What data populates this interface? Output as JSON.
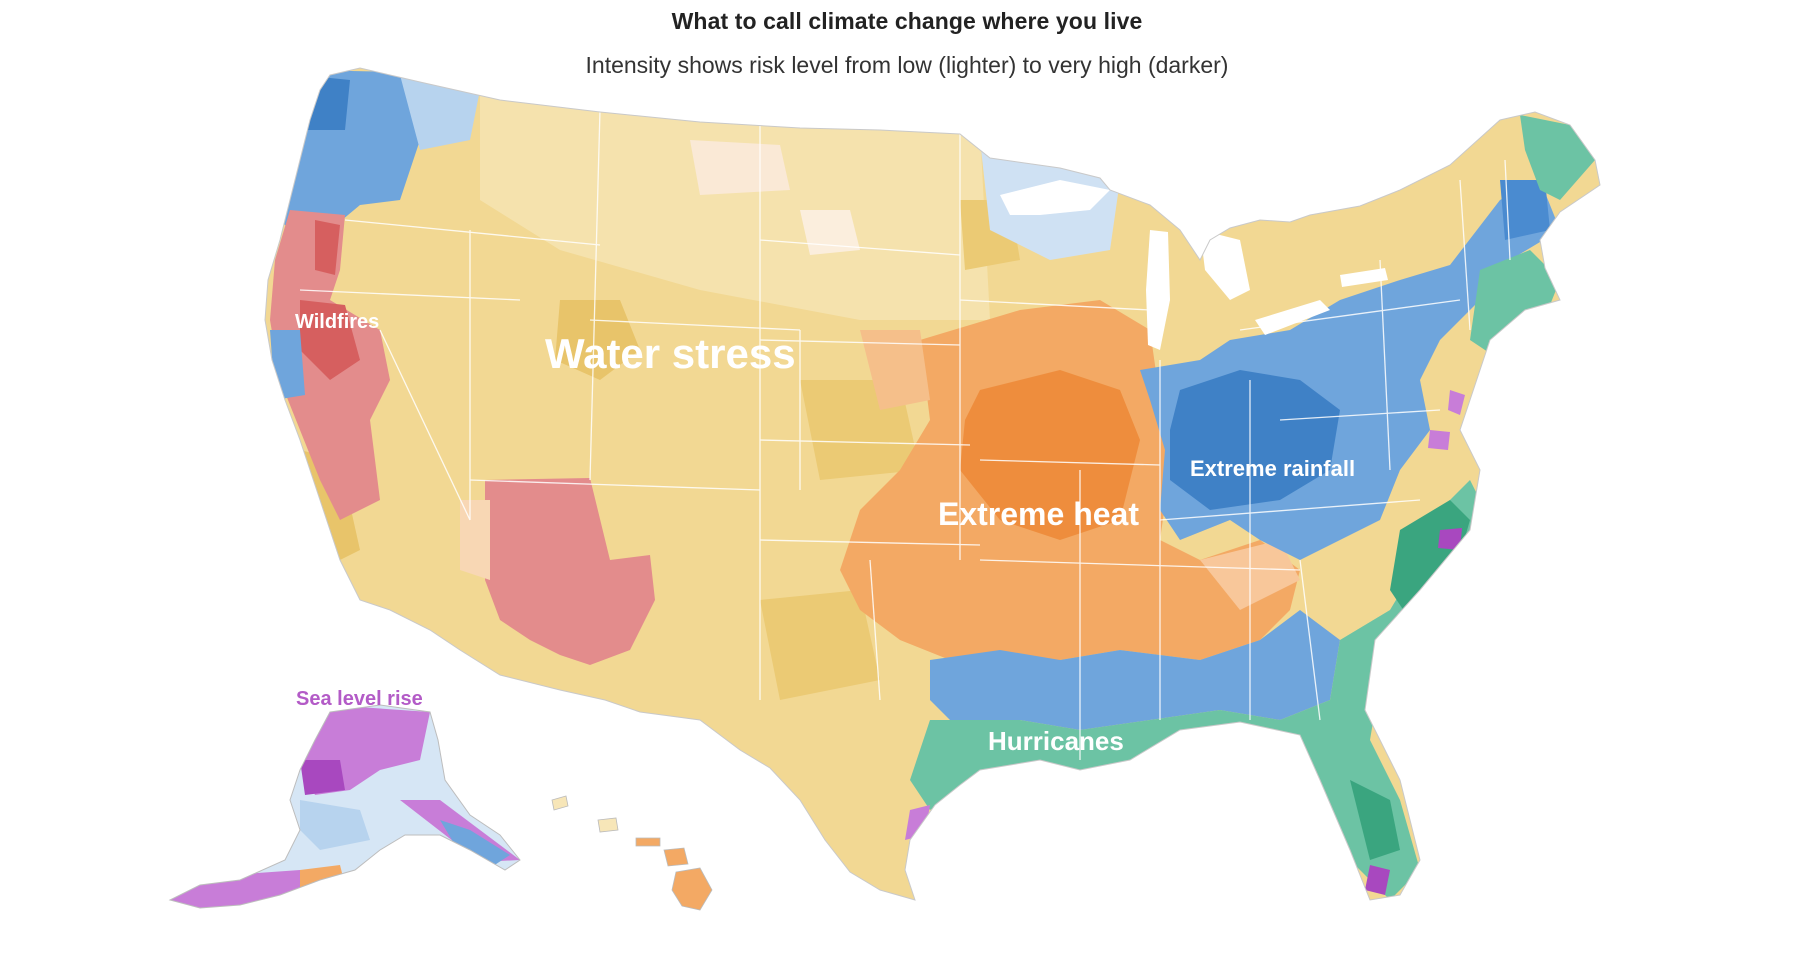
{
  "header": {
    "title": "What to call climate change where you live",
    "subtitle": "Intensity shows risk level from low (lighter) to very high (darker)"
  },
  "map": {
    "labels": {
      "wildfires": "Wildfires",
      "water_stress": "Water stress",
      "extreme_heat": "Extreme heat",
      "extreme_rainfall": "Extreme rainfall",
      "hurricanes": "Hurricanes",
      "sea_level_rise": "Sea level rise"
    },
    "colors": {
      "water_stress": "#f2d893",
      "water_stress_dark": "#e8c46a",
      "water_stress_light": "#f7e6b8",
      "extreme_heat": "#f3a964",
      "extreme_heat_dark": "#ee8d3d",
      "extreme_rainfall": "#6fa5dc",
      "extreme_rainfall_dark": "#3f81c6",
      "extreme_rainfall_light": "#b7d3ee",
      "hurricanes": "#6cc3a4",
      "hurricanes_dark": "#3aa57f",
      "wildfires": "#e38c8c",
      "wildfires_dark": "#d65f5f",
      "sea_level_rise": "#c87dd8",
      "sea_level_rise_dark": "#a848bf",
      "state_border": "#ffffff",
      "coast_outline": "#bbbbbb"
    }
  }
}
